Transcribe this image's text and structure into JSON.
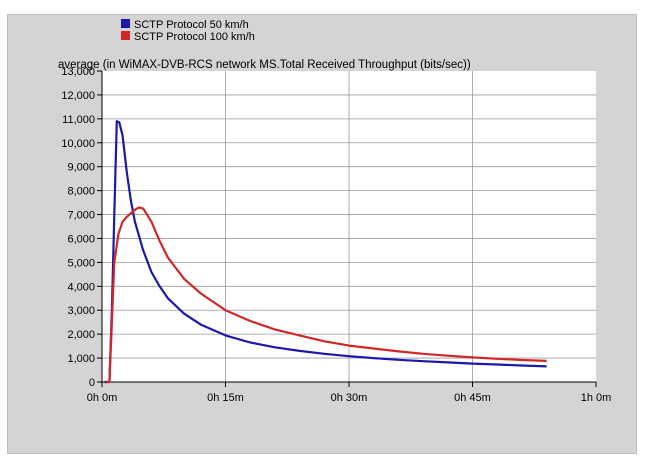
{
  "chart_data": {
    "type": "line",
    "title": "average (in WiMAX-DVB-RCS network MS.Total Received Throughput (bits/sec))",
    "xlabel": "",
    "ylabel": "",
    "x_unit": "minutes",
    "xlim": [
      0,
      60
    ],
    "ylim": [
      0,
      13000
    ],
    "xticks": [
      0,
      15,
      30,
      45,
      60
    ],
    "xtick_labels": [
      "0h 0m",
      "0h 15m",
      "0h 30m",
      "0h 45m",
      "1h 0m"
    ],
    "yticks": [
      0,
      1000,
      2000,
      3000,
      4000,
      5000,
      6000,
      7000,
      8000,
      9000,
      10000,
      11000,
      12000,
      13000
    ],
    "ytick_labels": [
      "0",
      "1,000",
      "2,000",
      "3,000",
      "4,000",
      "5,000",
      "6,000",
      "7,000",
      "8,000",
      "9,000",
      "10,000",
      "11,000",
      "12,000",
      "13,000"
    ],
    "grid": true,
    "legend_position": "top-left",
    "series": [
      {
        "name": "SCTP Protocol 50 km/h",
        "color": "#1a1aa8",
        "x": [
          0.3,
          0.9,
          1.2,
          1.5,
          1.8,
          2.1,
          2.5,
          3,
          3.5,
          4,
          5,
          6,
          7,
          8,
          10,
          12,
          15,
          18,
          21,
          24,
          27,
          30,
          33,
          36,
          39,
          42,
          45,
          48,
          51,
          54
        ],
        "y": [
          0,
          0,
          3000,
          7000,
          10900,
          10850,
          10300,
          8800,
          7600,
          6700,
          5500,
          4600,
          4000,
          3500,
          2850,
          2400,
          1950,
          1650,
          1450,
          1300,
          1180,
          1080,
          1000,
          930,
          870,
          820,
          770,
          730,
          690,
          650
        ]
      },
      {
        "name": "SCTP Protocol 100 km/h",
        "color": "#d02828",
        "x": [
          0.5,
          0.9,
          1.2,
          1.5,
          2,
          2.5,
          3,
          4,
          4.5,
          5,
          6,
          7,
          8,
          10,
          12,
          15,
          18,
          21,
          24,
          27,
          30,
          33,
          36,
          39,
          42,
          45,
          48,
          51,
          54
        ],
        "y": [
          0,
          0,
          2500,
          5000,
          6200,
          6700,
          6900,
          7200,
          7300,
          7250,
          6700,
          5900,
          5200,
          4300,
          3700,
          3000,
          2550,
          2200,
          1950,
          1700,
          1520,
          1400,
          1280,
          1180,
          1100,
          1030,
          970,
          920,
          880
        ]
      }
    ]
  }
}
